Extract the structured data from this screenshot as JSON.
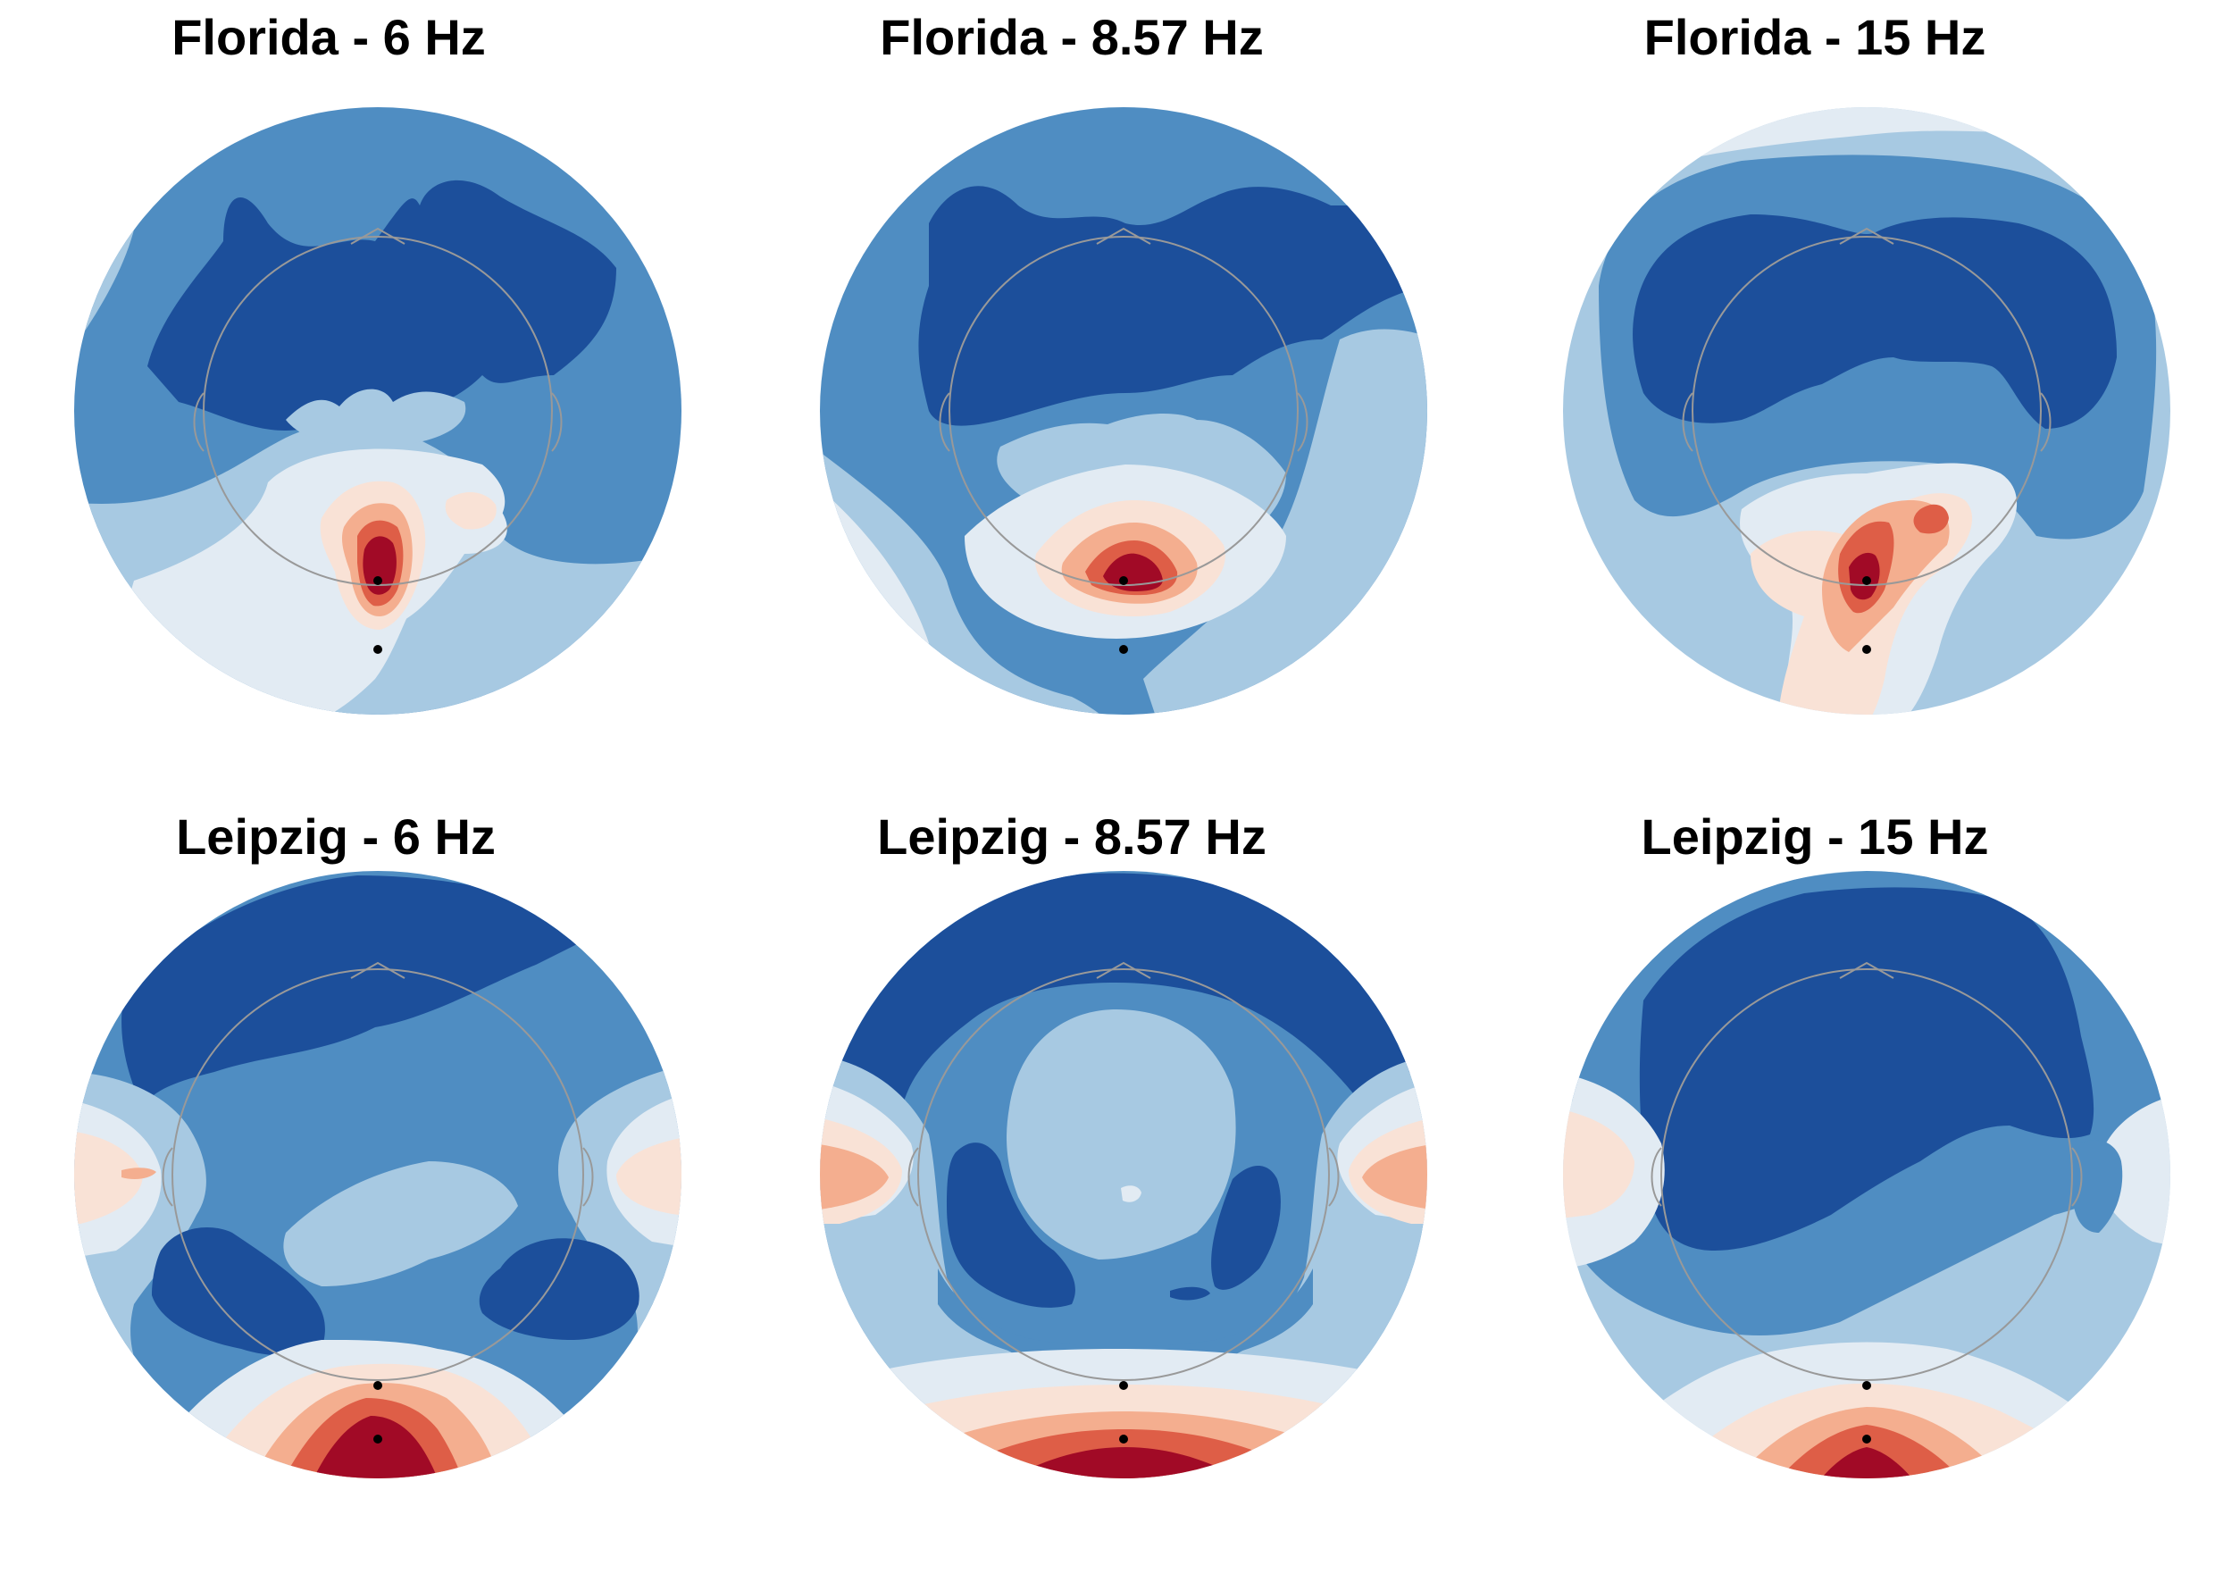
{
  "figure": {
    "colors": {
      "dark_blue": "#1c4f9b",
      "blue": "#4f8dc2",
      "light_blue": "#a7c9e2",
      "pale_blue": "#e2ebf3",
      "pale_orange": "#f9e2d6",
      "salmon": "#f4ae8f",
      "orange_red": "#de5e47",
      "dark_red": "#a10a26",
      "head_outline": "#999999",
      "electrode": "#000000"
    }
  },
  "chart_data": [
    {
      "type": "heatmap",
      "title": "Florida - 6 Hz",
      "site": "Florida",
      "frequency": "6 Hz",
      "colormap": "RdBu_r",
      "electrodes_marked": 2,
      "hotspot": "occipital, near upper electrode",
      "background_level": "blue"
    },
    {
      "type": "heatmap",
      "title": "Florida - 8.57 Hz",
      "site": "Florida",
      "frequency": "8.57 Hz",
      "colormap": "RdBu_r",
      "electrodes_marked": 2,
      "hotspot": "occipital, near upper electrode",
      "background_level": "blue"
    },
    {
      "type": "heatmap",
      "title": "Florida - 15 Hz",
      "site": "Florida",
      "frequency": "15 Hz",
      "colormap": "RdBu_r",
      "electrodes_marked": 2,
      "hotspot": "occipital, near upper electrode, extending toward right",
      "background_level": "light blue"
    },
    {
      "type": "heatmap",
      "title": "Leipzig - 6 Hz",
      "site": "Leipzig",
      "frequency": "6 Hz",
      "colormap": "RdBu_r",
      "electrodes_marked": 2,
      "hotspot": "posterior edge, below head",
      "background_level": "blue"
    },
    {
      "type": "heatmap",
      "title": "Leipzig - 8.57 Hz",
      "site": "Leipzig",
      "frequency": "8.57 Hz",
      "colormap": "RdBu_r",
      "electrodes_marked": 2,
      "hotspot": "posterior edge, below head",
      "background_level": "blue"
    },
    {
      "type": "heatmap",
      "title": "Leipzig - 15 Hz",
      "site": "Leipzig",
      "frequency": "15 Hz",
      "colormap": "RdBu_r",
      "electrodes_marked": 2,
      "hotspot": "posterior edge, below head",
      "background_level": "blue"
    }
  ]
}
